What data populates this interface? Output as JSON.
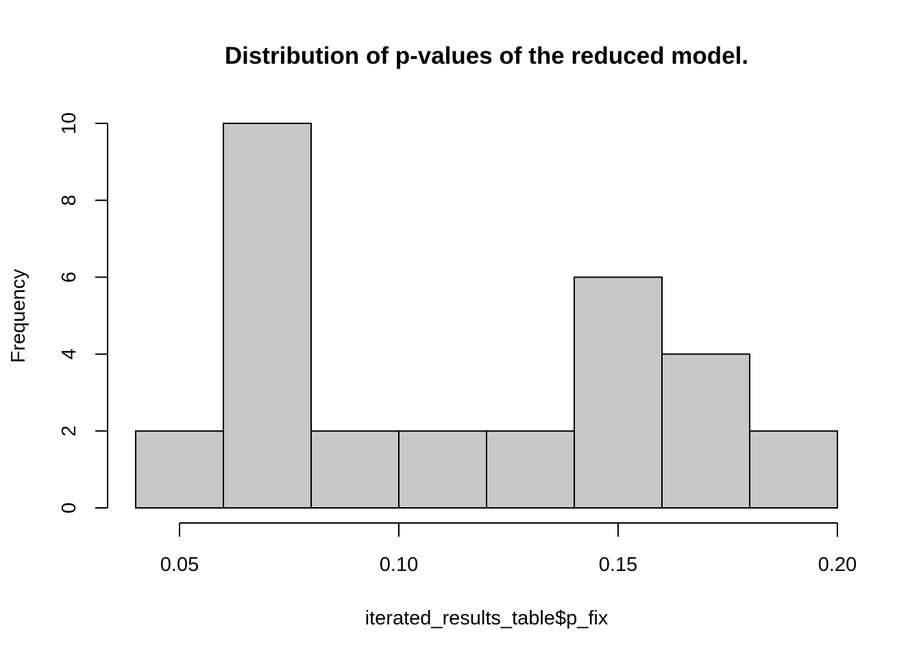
{
  "chart_data": {
    "type": "bar",
    "title": "Distribution of p-values of the reduced model.",
    "xlabel": "iterated_results_table$p_fix",
    "ylabel": "Frequency",
    "bins": [
      {
        "from": 0.04,
        "to": 0.06,
        "count": 2
      },
      {
        "from": 0.06,
        "to": 0.08,
        "count": 10
      },
      {
        "from": 0.08,
        "to": 0.1,
        "count": 2
      },
      {
        "from": 0.1,
        "to": 0.12,
        "count": 2
      },
      {
        "from": 0.12,
        "to": 0.14,
        "count": 2
      },
      {
        "from": 0.14,
        "to": 0.16,
        "count": 6
      },
      {
        "from": 0.16,
        "to": 0.18,
        "count": 4
      },
      {
        "from": 0.18,
        "to": 0.2,
        "count": 2
      }
    ],
    "x_ticks": [
      {
        "value": 0.05,
        "label": "0.05"
      },
      {
        "value": 0.1,
        "label": "0.10"
      },
      {
        "value": 0.15,
        "label": "0.15"
      },
      {
        "value": 0.2,
        "label": "0.20"
      }
    ],
    "y_ticks": [
      {
        "value": 0,
        "label": "0"
      },
      {
        "value": 2,
        "label": "2"
      },
      {
        "value": 4,
        "label": "4"
      },
      {
        "value": 6,
        "label": "6"
      },
      {
        "value": 8,
        "label": "8"
      },
      {
        "value": 10,
        "label": "10"
      }
    ],
    "xlim": [
      0.04,
      0.2
    ],
    "ylim": [
      0,
      10
    ],
    "bar_color": "#c8c8c8",
    "edge_color": "#000000",
    "grid": false,
    "legend": "none"
  }
}
